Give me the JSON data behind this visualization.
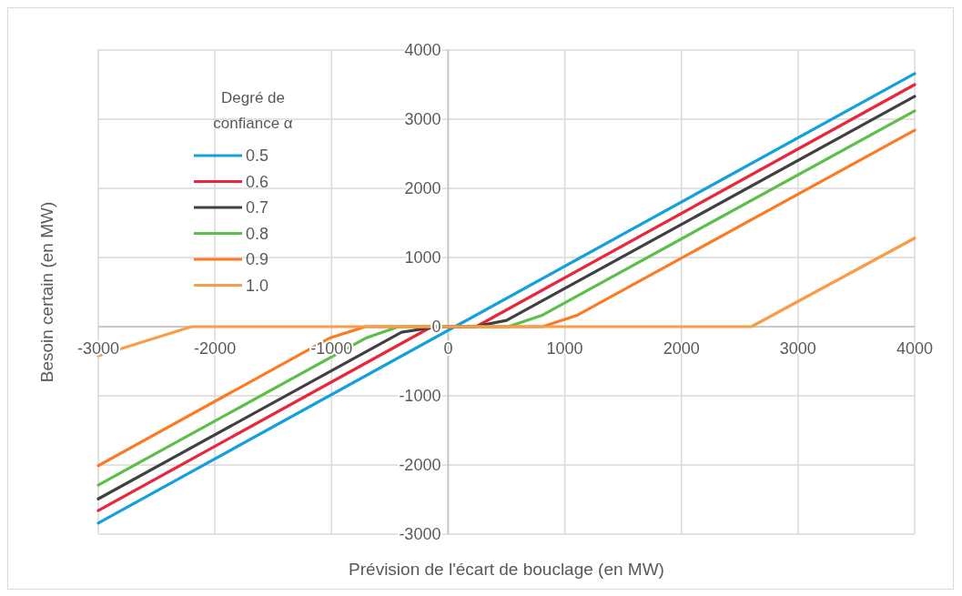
{
  "chart_data": {
    "type": "line",
    "xlabel": "Prévision de l'écart de bouclage (en MW)",
    "ylabel": "Besoin certain (en MW)",
    "legend_title": "Degré de confiance α",
    "legend": "top left",
    "grid": true,
    "marker": "none",
    "line_style": "solid",
    "xlim": [
      -3000,
      4000
    ],
    "xticks": [
      -3000,
      -2000,
      -1000,
      0,
      1000,
      2000,
      3000,
      4000
    ],
    "ylim": [
      -3000,
      4000
    ],
    "yticks": [
      -3000,
      -2000,
      -1000,
      0,
      1000,
      2000,
      3000,
      4000
    ],
    "series": [
      {
        "name": "0.5",
        "color": "#14a0dc",
        "x": [
          -3000,
          4000
        ],
        "values": [
          -2840,
          3660
        ]
      },
      {
        "name": "0.6",
        "color": "#e8283a",
        "x": [
          -3000,
          -140,
          240,
          4000
        ],
        "values": [
          -2660,
          0,
          0,
          3500
        ]
      },
      {
        "name": "0.7",
        "color": "#404040",
        "x": [
          -3000,
          -400,
          -90,
          225,
          500,
          4000
        ],
        "values": [
          -2490,
          -80,
          0,
          0,
          90,
          3330
        ]
      },
      {
        "name": "0.8",
        "color": "#5cbf4a",
        "x": [
          -3000,
          -700,
          -425,
          515,
          800,
          4000
        ],
        "values": [
          -2290,
          -160,
          0,
          0,
          160,
          3120
        ]
      },
      {
        "name": "0.9",
        "color": "#fb7a23",
        "x": [
          -3000,
          -1010,
          -710,
          810,
          1100,
          4000
        ],
        "values": [
          -2010,
          -160,
          0,
          0,
          160,
          2840
        ]
      },
      {
        "name": "1.0",
        "color": "#f89c4a",
        "x": [
          -3000,
          -2200,
          2600,
          4000
        ],
        "values": [
          -420,
          0,
          0,
          1280
        ]
      }
    ]
  }
}
